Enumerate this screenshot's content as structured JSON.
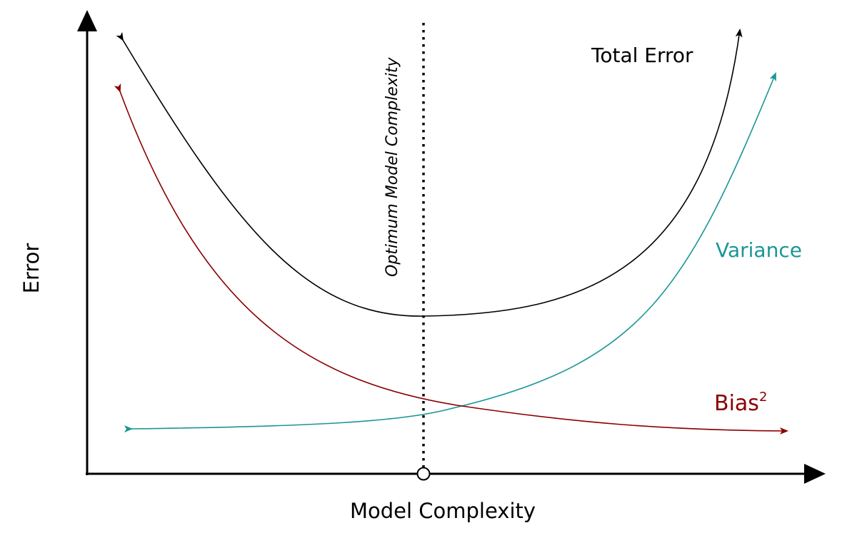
{
  "chart_data": {
    "type": "line",
    "xlabel": "Model Complexity",
    "ylabel": "Error",
    "series": [
      {
        "name": "Total Error",
        "color": "#000000",
        "arrows": "both"
      },
      {
        "name": "Variance",
        "color": "#1a9696",
        "arrows": "both"
      },
      {
        "name": "Bias",
        "superscript": "2",
        "color": "#8b0000",
        "arrows": "both"
      }
    ],
    "annotations": [
      {
        "text": "Optimum Model Complexity",
        "style": "dotted vertical line at minimum of total error"
      }
    ],
    "grid": false,
    "axis_arrows": true
  }
}
